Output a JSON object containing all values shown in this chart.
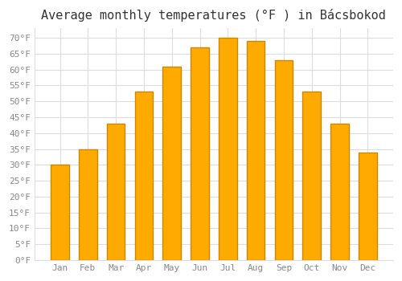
{
  "title": "Average monthly temperatures (°F ) in Bácsbokod",
  "months": [
    "Jan",
    "Feb",
    "Mar",
    "Apr",
    "May",
    "Jun",
    "Jul",
    "Aug",
    "Sep",
    "Oct",
    "Nov",
    "Dec"
  ],
  "values": [
    30,
    35,
    43,
    53,
    61,
    67,
    70,
    69,
    63,
    53,
    43,
    34
  ],
  "bar_color": "#FFAA00",
  "bar_edge_color": "#CC8800",
  "ylim": [
    0,
    73
  ],
  "yticks": [
    0,
    5,
    10,
    15,
    20,
    25,
    30,
    35,
    40,
    45,
    50,
    55,
    60,
    65,
    70
  ],
  "background_color": "#FFFFFF",
  "grid_color": "#DDDDDD",
  "title_fontsize": 11,
  "tick_fontsize": 8,
  "font_family": "monospace",
  "title_color": "#333333",
  "tick_color": "#888888"
}
